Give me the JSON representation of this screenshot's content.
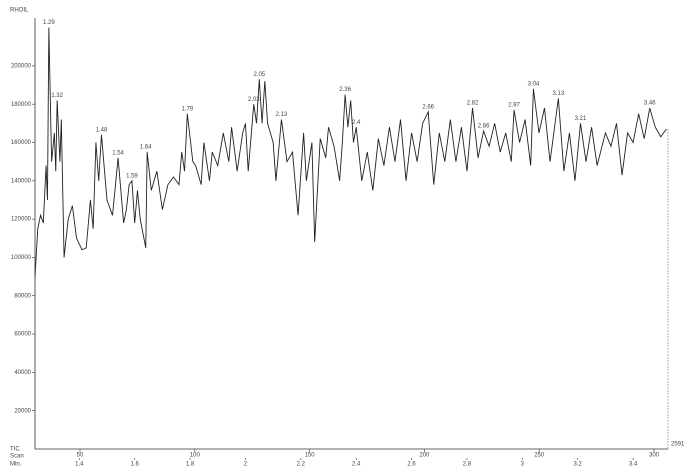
{
  "chart_data": {
    "type": "line",
    "title": "RHOIL",
    "y_label": "TIC",
    "x_label": "Min.",
    "x2_label": "Scan",
    "end_label": "2591",
    "color": "#222222",
    "xlim": [
      1.24,
      3.526
    ],
    "xticks": [
      1.4,
      1.6,
      1.8,
      2.0,
      2.2,
      2.4,
      2.6,
      2.8,
      3.0,
      3.2,
      3.4
    ],
    "x2lim": [
      30.4,
      306.1
    ],
    "x2ticks": [
      50,
      100,
      150,
      200,
      250,
      300
    ],
    "ylim": [
      0,
      225000
    ],
    "yticks": [
      20000,
      40000,
      60000,
      80000,
      100000,
      120000,
      140000,
      160000,
      180000,
      200000
    ],
    "x": [
      1.24,
      1.25,
      1.26,
      1.27,
      1.28,
      1.285,
      1.29,
      1.3,
      1.31,
      1.315,
      1.32,
      1.33,
      1.335,
      1.345,
      1.36,
      1.375,
      1.39,
      1.41,
      1.425,
      1.44,
      1.45,
      1.46,
      1.47,
      1.48,
      1.5,
      1.52,
      1.54,
      1.56,
      1.57,
      1.58,
      1.59,
      1.6,
      1.61,
      1.62,
      1.64,
      1.645,
      1.66,
      1.68,
      1.7,
      1.72,
      1.74,
      1.76,
      1.77,
      1.78,
      1.79,
      1.81,
      1.82,
      1.84,
      1.85,
      1.87,
      1.88,
      1.9,
      1.92,
      1.94,
      1.95,
      1.97,
      1.99,
      2.0,
      2.01,
      2.03,
      2.04,
      2.05,
      2.06,
      2.07,
      2.08,
      2.1,
      2.11,
      2.13,
      2.15,
      2.17,
      2.19,
      2.21,
      2.22,
      2.24,
      2.25,
      2.27,
      2.29,
      2.3,
      2.32,
      2.34,
      2.35,
      2.36,
      2.37,
      2.38,
      2.39,
      2.4,
      2.42,
      2.44,
      2.46,
      2.48,
      2.5,
      2.52,
      2.54,
      2.56,
      2.58,
      2.6,
      2.62,
      2.64,
      2.66,
      2.68,
      2.7,
      2.72,
      2.74,
      2.76,
      2.78,
      2.8,
      2.82,
      2.84,
      2.86,
      2.88,
      2.9,
      2.92,
      2.94,
      2.96,
      2.97,
      2.99,
      3.01,
      3.03,
      3.04,
      3.06,
      3.08,
      3.1,
      3.13,
      3.15,
      3.17,
      3.19,
      3.21,
      3.23,
      3.25,
      3.27,
      3.3,
      3.32,
      3.34,
      3.36,
      3.38,
      3.4,
      3.42,
      3.44,
      3.46,
      3.48,
      3.5,
      3.52
    ],
    "values": [
      90000,
      115000,
      122000,
      118000,
      148000,
      130000,
      220000,
      150000,
      165000,
      145000,
      182000,
      150000,
      172000,
      100000,
      120000,
      127000,
      110000,
      104000,
      105000,
      130000,
      115000,
      160000,
      140000,
      164000,
      130000,
      122000,
      152000,
      118000,
      125000,
      138000,
      140000,
      118000,
      135000,
      120000,
      105000,
      155000,
      135000,
      145000,
      125000,
      138000,
      142000,
      138000,
      155000,
      145000,
      175000,
      150000,
      148000,
      138000,
      160000,
      140000,
      155000,
      148000,
      165000,
      150000,
      168000,
      145000,
      165000,
      170000,
      145000,
      180000,
      170000,
      193000,
      170000,
      192000,
      170000,
      160000,
      140000,
      172000,
      150000,
      155000,
      122000,
      165000,
      140000,
      160000,
      108000,
      162000,
      152000,
      168000,
      158000,
      140000,
      160000,
      185000,
      168000,
      182000,
      160000,
      168000,
      140000,
      155000,
      135000,
      162000,
      148000,
      168000,
      150000,
      172000,
      140000,
      165000,
      150000,
      170000,
      176000,
      138000,
      165000,
      150000,
      172000,
      150000,
      168000,
      145000,
      178000,
      152000,
      166000,
      158000,
      170000,
      155000,
      165000,
      150000,
      177000,
      160000,
      172000,
      148000,
      188000,
      165000,
      178000,
      150000,
      183000,
      145000,
      165000,
      140000,
      170000,
      150000,
      168000,
      148000,
      165000,
      158000,
      170000,
      143000,
      165000,
      160000,
      175000,
      162000,
      178000,
      168000,
      163000,
      167000
    ],
    "peaks": [
      {
        "x": 1.29,
        "y": 220000
      },
      {
        "x": 1.32,
        "y": 182000
      },
      {
        "x": 1.48,
        "y": 164000
      },
      {
        "x": 1.54,
        "y": 152000
      },
      {
        "x": 1.59,
        "y": 140000
      },
      {
        "x": 1.64,
        "y": 155000
      },
      {
        "x": 1.79,
        "y": 175000
      },
      {
        "x": 2.03,
        "y": 180000
      },
      {
        "x": 2.05,
        "y": 193000
      },
      {
        "x": 2.13,
        "y": 172000
      },
      {
        "x": 2.36,
        "y": 185000
      },
      {
        "x": 2.4,
        "y": 168000
      },
      {
        "x": 2.66,
        "y": 176000
      },
      {
        "x": 2.82,
        "y": 178000
      },
      {
        "x": 2.86,
        "y": 166000
      },
      {
        "x": 2.97,
        "y": 177000
      },
      {
        "x": 3.04,
        "y": 188000
      },
      {
        "x": 3.13,
        "y": 183000
      },
      {
        "x": 3.21,
        "y": 170000
      },
      {
        "x": 3.46,
        "y": 178000
      }
    ]
  }
}
